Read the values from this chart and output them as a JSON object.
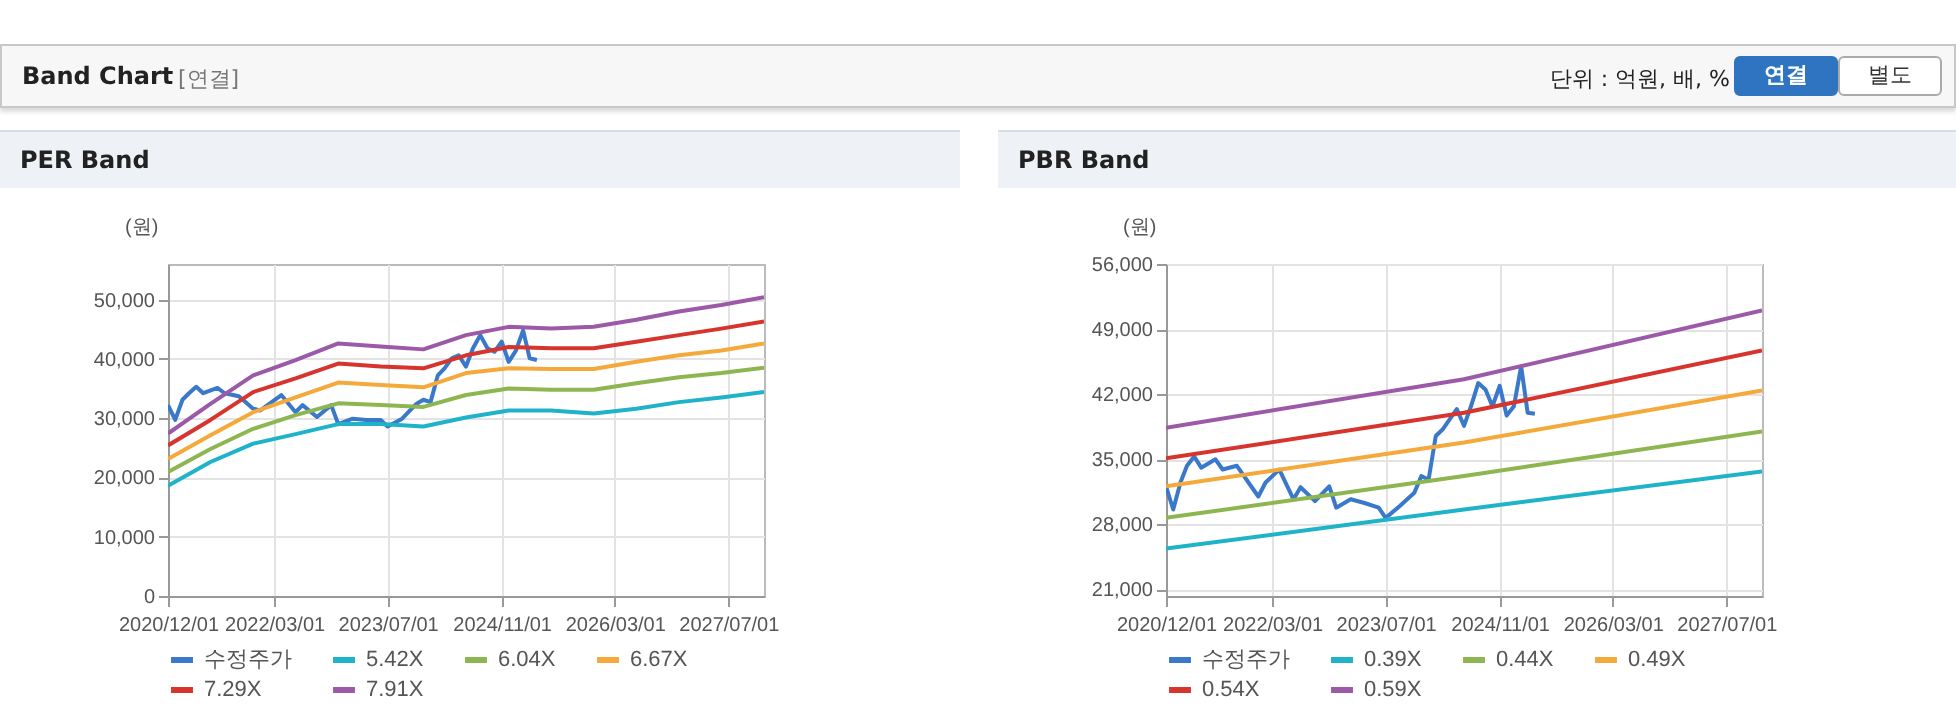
{
  "chart_data": [
    {
      "type": "line",
      "title": "PER Band",
      "ylabel": "(원)",
      "annotations": [
        "Band Chart",
        "[연결]",
        "단위 : 억원, 배, %",
        "연결",
        "별도"
      ],
      "grid": true,
      "legend": "bottom",
      "xlim": [
        "2020-12-01",
        "2027-12-01"
      ],
      "xticks": [
        {
          "value": "2020-12-01",
          "label": "2020/12/01"
        },
        {
          "value": "2022-03-01",
          "label": "2022/03/01"
        },
        {
          "value": "2023-07-01",
          "label": "2023/07/01"
        },
        {
          "value": "2024-11-01",
          "label": "2024/11/01"
        },
        {
          "value": "2026-03-01",
          "label": "2026/03/01"
        },
        {
          "value": "2027-07-01",
          "label": "2027/07/01"
        }
      ],
      "ylim": [
        0,
        56000
      ],
      "yticks": [
        0,
        {
          "value": 10000,
          "label": "10,000"
        },
        {
          "value": 20000,
          "label": "20,000"
        },
        {
          "value": 30000,
          "label": "30,000"
        },
        {
          "value": 40000,
          "label": "40,000"
        },
        {
          "value": 50000,
          "label": "50,000"
        }
      ],
      "x": [
        "2020-12",
        "2021-06",
        "2021-12",
        "2022-06",
        "2022-12",
        "2023-06",
        "2023-12",
        "2024-06",
        "2024-12",
        "2025-06",
        "2025-12",
        "2026-06",
        "2026-12",
        "2027-06",
        "2027-12"
      ],
      "series": [
        {
          "name": "수정주가",
          "color": "#3a78c9",
          "x": [
            "2020-12",
            "2021-01",
            "2021-02",
            "2021-03",
            "2021-04",
            "2021-05",
            "2021-07",
            "2021-08",
            "2021-10",
            "2021-12",
            "2022-01",
            "2022-02",
            "2022-04",
            "2022-06",
            "2022-07",
            "2022-09",
            "2022-11",
            "2022-12",
            "2023-02",
            "2023-04",
            "2023-06",
            "2023-07",
            "2023-09",
            "2023-11",
            "2023-12",
            "2024-01",
            "2024-02",
            "2024-03",
            "2024-04",
            "2024-05",
            "2024-06",
            "2024-07",
            "2024-08",
            "2024-09",
            "2024-10",
            "2024-11",
            "2024-12",
            "2025-01",
            "2025-02",
            "2025-03",
            "2025-04"
          ],
          "values": [
            32200,
            29700,
            33100,
            34200,
            35300,
            34200,
            35100,
            34200,
            33700,
            31600,
            31300,
            32200,
            33900,
            31000,
            32200,
            30200,
            32200,
            29000,
            29900,
            29700,
            29700,
            28600,
            29900,
            32400,
            33100,
            32700,
            37200,
            38400,
            40100,
            40600,
            38700,
            41800,
            44000,
            41800,
            41200,
            42900,
            39500,
            41400,
            44800,
            40100,
            39800
          ]
        },
        {
          "name": "5.42X",
          "color": "#1fb3c9",
          "values": [
            18600,
            22600,
            25700,
            27300,
            29000,
            29000,
            28600,
            30100,
            31300,
            31300,
            30800,
            31600,
            32700,
            33500,
            34400
          ]
        },
        {
          "name": "6.04X",
          "color": "#8db650",
          "values": [
            20900,
            24800,
            28200,
            30500,
            32500,
            32200,
            31900,
            33900,
            35000,
            34800,
            34800,
            35900,
            36900,
            37600,
            38500
          ]
        },
        {
          "name": "6.67X",
          "color": "#f5a93a",
          "values": [
            23100,
            27100,
            31000,
            33500,
            36000,
            35600,
            35200,
            37600,
            38400,
            38300,
            38300,
            39500,
            40600,
            41400,
            42600
          ]
        },
        {
          "name": "7.29X",
          "color": "#d6342c",
          "values": [
            25400,
            29700,
            34400,
            36700,
            39200,
            38700,
            38400,
            40600,
            42000,
            41800,
            41800,
            42900,
            44000,
            45100,
            46300
          ]
        },
        {
          "name": "7.91X",
          "color": "#9b59a8",
          "values": [
            27400,
            32400,
            37200,
            39800,
            42600,
            42100,
            41600,
            44000,
            45400,
            45100,
            45400,
            46600,
            48000,
            49100,
            50400
          ]
        }
      ]
    },
    {
      "type": "line",
      "title": "PBR Band",
      "ylabel": "(원)",
      "grid": true,
      "legend": "bottom",
      "xlim": [
        "2020-12-01",
        "2027-12-01"
      ],
      "xticks": [
        {
          "value": "2020-12-01",
          "label": "2020/12/01"
        },
        {
          "value": "2022-03-01",
          "label": "2022/03/01"
        },
        {
          "value": "2023-07-01",
          "label": "2023/07/01"
        },
        {
          "value": "2024-11-01",
          "label": "2024/11/01"
        },
        {
          "value": "2026-03-01",
          "label": "2026/03/01"
        },
        {
          "value": "2027-07-01",
          "label": "2027/07/01"
        }
      ],
      "ylim": [
        20300,
        56000
      ],
      "yticks": [
        {
          "value": 21000,
          "label": "21,000"
        },
        {
          "value": 28000,
          "label": "28,000"
        },
        {
          "value": 35000,
          "label": "35,000"
        },
        {
          "value": 42000,
          "label": "42,000"
        },
        {
          "value": 49000,
          "label": "49,000"
        },
        {
          "value": 56000,
          "label": "56,000"
        }
      ],
      "x": [
        "2020-12",
        "2024-06",
        "2027-12"
      ],
      "series": [
        {
          "name": "수정주가",
          "color": "#3a78c9",
          "x": [
            "2020-12",
            "2021-01",
            "2021-02",
            "2021-03",
            "2021-04",
            "2021-05",
            "2021-07",
            "2021-08",
            "2021-10",
            "2021-12",
            "2022-01",
            "2022-02",
            "2022-04",
            "2022-06",
            "2022-07",
            "2022-09",
            "2022-11",
            "2022-12",
            "2023-02",
            "2023-04",
            "2023-06",
            "2023-07",
            "2023-09",
            "2023-11",
            "2023-12",
            "2024-01",
            "2024-02",
            "2024-03",
            "2024-05",
            "2024-06",
            "2024-07",
            "2024-08",
            "2024-09",
            "2024-10",
            "2024-11",
            "2024-12",
            "2025-01",
            "2025-02",
            "2025-03",
            "2025-04"
          ],
          "values": [
            32100,
            29600,
            32500,
            34300,
            35300,
            34100,
            35000,
            33900,
            34300,
            32100,
            31000,
            32500,
            33900,
            30700,
            32000,
            30500,
            32100,
            29800,
            30700,
            30300,
            29800,
            28700,
            30000,
            31400,
            33200,
            32800,
            37500,
            38200,
            40400,
            38600,
            40700,
            43200,
            42500,
            40700,
            42900,
            39700,
            40700,
            45000,
            40000,
            39900
          ]
        },
        {
          "name": "0.39X",
          "color": "#1fb3c9",
          "values": [
            25400,
            29600,
            33700
          ]
        },
        {
          "name": "0.44X",
          "color": "#8db650",
          "values": [
            28700,
            33200,
            38000
          ]
        },
        {
          "name": "0.49X",
          "color": "#f5a93a",
          "values": [
            32100,
            36800,
            42400
          ]
        },
        {
          "name": "0.54X",
          "color": "#d6342c",
          "values": [
            35100,
            40000,
            46700
          ]
        },
        {
          "name": "0.59X",
          "color": "#9b59a8",
          "values": [
            38400,
            43600,
            51000
          ]
        }
      ]
    }
  ]
}
